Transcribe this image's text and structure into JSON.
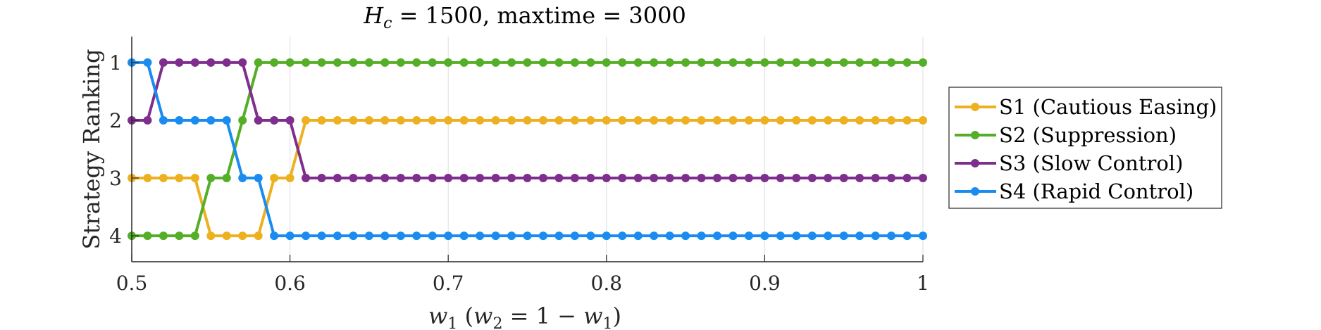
{
  "chart_data": {
    "type": "line",
    "title": "H_c = 1500, maxtime = 3000",
    "title_parts": {
      "var": "H",
      "sub": "c",
      "rest": " = 1500, maxtime = 3000"
    },
    "xlabel": "w1 (w2 = 1 − w1)",
    "xlabel_parts": {
      "w": "w",
      "s1": "1",
      "mid": " (",
      "w2": "w",
      "s2": "2",
      "eq": " = 1 − ",
      "w3": "w",
      "s3": "1",
      "end": ")"
    },
    "ylabel": "Strategy Ranking",
    "xlim": [
      0.5,
      1.0
    ],
    "ylim": [
      0.55,
      4.45
    ],
    "y_reversed": true,
    "grid": "vertical",
    "legend_position": "right",
    "x_ticks": [
      "0.5",
      "0.6",
      "0.7",
      "0.8",
      "0.9",
      "1"
    ],
    "y_ticks": [
      "1",
      "2",
      "3",
      "4"
    ],
    "x_step": 0.01,
    "x_start": 0.5,
    "series": [
      {
        "name": "S1 (Cautious Easing)",
        "color": "#EDB120",
        "ranks_head": [
          3,
          3,
          3,
          3,
          3,
          4,
          4,
          4,
          4,
          3,
          3
        ],
        "rank_tail": 2
      },
      {
        "name": "S2 (Suppression)",
        "color": "#55AE28",
        "ranks_head": [
          4,
          4,
          4,
          4,
          4,
          3,
          3,
          2,
          1,
          1,
          1
        ],
        "rank_tail": 1
      },
      {
        "name": "S3 (Slow Control)",
        "color": "#7E2F8E",
        "ranks_head": [
          2,
          2,
          1,
          1,
          1,
          1,
          1,
          1,
          2,
          2,
          2
        ],
        "rank_tail": 3
      },
      {
        "name": "S4 (Rapid Control)",
        "color": "#1A8CEF",
        "ranks_head": [
          1,
          1,
          2,
          2,
          2,
          2,
          2,
          3,
          3,
          4,
          4
        ],
        "rank_tail": 4
      }
    ]
  }
}
